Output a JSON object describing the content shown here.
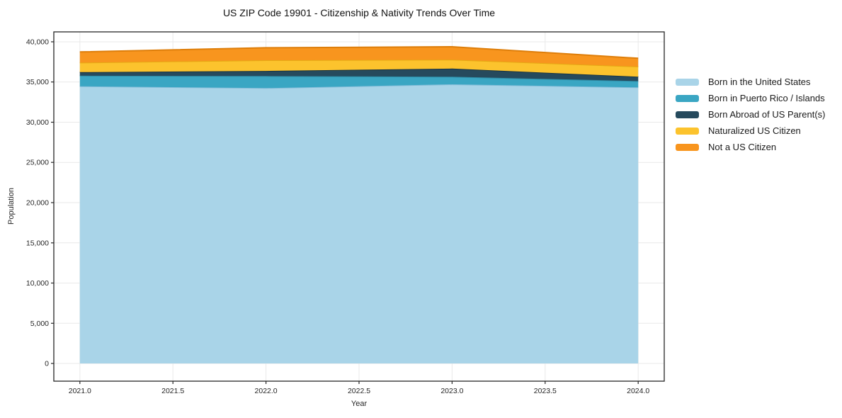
{
  "chart_data": {
    "type": "area",
    "stacked": true,
    "title": "US ZIP Code 19901 - Citizenship & Nativity Trends Over Time",
    "xlabel": "Year",
    "ylabel": "Population",
    "x": [
      2021,
      2022,
      2023,
      2024
    ],
    "series": [
      {
        "name": "Born in the United States",
        "fill": "#a9d4e8",
        "line": "#82bcd8",
        "values": [
          34470,
          34240,
          34710,
          34330
        ]
      },
      {
        "name": "Born in Puerto Rico / Islands",
        "fill": "#3aa6c3",
        "line": "#2e8aa3",
        "values": [
          1320,
          1500,
          940,
          790
        ]
      },
      {
        "name": "Born Abroad of US Parent(s)",
        "fill": "#264a5d",
        "line": "#1a3543",
        "values": [
          440,
          640,
          1020,
          530
        ]
      },
      {
        "name": "Naturalized US Citizen",
        "fill": "#fcc32d",
        "line": "#e6a914",
        "values": [
          1180,
          1330,
          1100,
          1260
        ]
      },
      {
        "name": "Not a US Citizen",
        "fill": "#f8951e",
        "line": "#de7e0a",
        "values": [
          1330,
          1550,
          1610,
          1030
        ]
      }
    ],
    "stack_totals": [
      38740,
      39260,
      39380,
      37940
    ],
    "x_ticks": [
      2021.0,
      2021.5,
      2022.0,
      2022.5,
      2023.0,
      2023.5,
      2024.0
    ],
    "x_tick_labels": [
      "2021.0",
      "2021.5",
      "2022.0",
      "2022.5",
      "2023.0",
      "2023.5",
      "2024.0"
    ],
    "y_ticks": [
      0,
      5000,
      10000,
      15000,
      20000,
      25000,
      30000,
      35000,
      40000
    ],
    "y_tick_labels": [
      "0",
      "5,000",
      "10,000",
      "15,000",
      "20,000",
      "25,000",
      "30,000",
      "35,000",
      "40,000"
    ],
    "xlim": [
      2020.86,
      2024.14
    ],
    "ylim": [
      -2200,
      41230
    ],
    "grid": true,
    "legend_position": "right-outside",
    "colors": {
      "background": "#ffffff",
      "grid": "#e9e9e9",
      "spine": "#262626",
      "text": "#262626"
    }
  }
}
